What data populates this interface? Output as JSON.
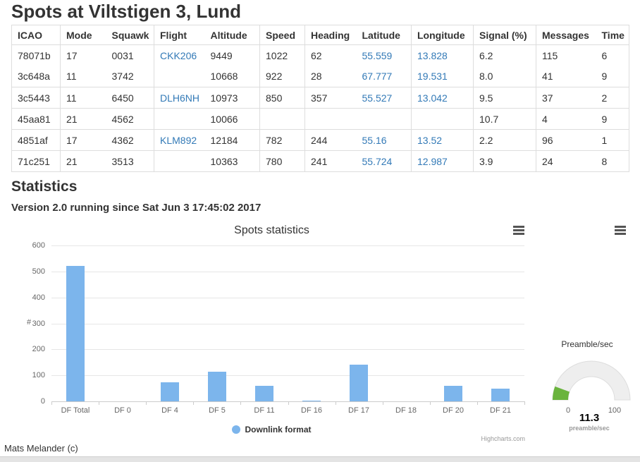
{
  "page": {
    "title": "Spots at Viltstigen 3, Lund",
    "footer_credit": "Mats Melander (c)"
  },
  "table": {
    "columns": [
      "ICAO",
      "Mode",
      "Squawk",
      "Flight",
      "Altitude",
      "Speed",
      "Heading",
      "Latitude",
      "Longitude",
      "Signal (%)",
      "Messages",
      "Time"
    ],
    "rows": [
      [
        "78071b",
        "17",
        "0031",
        "CKK206",
        "9449",
        "1022",
        "62",
        "55.559",
        "13.828",
        "6.2",
        "115",
        "6"
      ],
      [
        "3c648a",
        "11",
        "3742",
        "",
        "10668",
        "922",
        "28",
        "67.777",
        "19.531",
        "8.0",
        "41",
        "9"
      ],
      [
        "3c5443",
        "11",
        "6450",
        "DLH6NH",
        "10973",
        "850",
        "357",
        "55.527",
        "13.042",
        "9.5",
        "37",
        "2"
      ],
      [
        "45aa81",
        "21",
        "4562",
        "",
        "10066",
        "",
        "",
        "",
        "",
        "10.7",
        "4",
        "9"
      ],
      [
        "4851af",
        "17",
        "4362",
        "KLM892",
        "12184",
        "782",
        "244",
        "55.16",
        "13.52",
        "2.2",
        "96",
        "1"
      ],
      [
        "71c251",
        "21",
        "3513",
        "",
        "10363",
        "780",
        "241",
        "55.724",
        "12.987",
        "3.9",
        "24",
        "8"
      ]
    ],
    "link_color": "#337ab7"
  },
  "statistics": {
    "heading": "Statistics",
    "version_line": "Version 2.0 running since Sat Jun 3 17:45:02 2017"
  },
  "chart_data": [
    {
      "type": "bar",
      "title": "Spots statistics",
      "categories": [
        "DF Total",
        "DF 0",
        "DF 4",
        "DF 5",
        "DF 11",
        "DF 16",
        "DF 17",
        "DF 18",
        "DF 20",
        "DF 21"
      ],
      "series": [
        {
          "name": "Downlink format",
          "values": [
            520,
            0,
            74,
            115,
            60,
            4,
            140,
            0,
            60,
            48
          ]
        }
      ],
      "xlabel": "",
      "ylabel": "#",
      "ylim": [
        0,
        600
      ],
      "ytick_interval": 100,
      "grid": true,
      "legend_position": "bottom-center",
      "bar_color": "#7cb5ec",
      "credits": "Highcharts.com"
    },
    {
      "type": "gauge",
      "title": "Preamble/sec",
      "value": 11.3,
      "value_label": "11.3",
      "min": 0,
      "max": 100,
      "min_label": "0",
      "max_label": "100",
      "unit_label": "preamble/sec",
      "fill_color": "#6AB43D",
      "track_color": "#eeeeee"
    }
  ]
}
